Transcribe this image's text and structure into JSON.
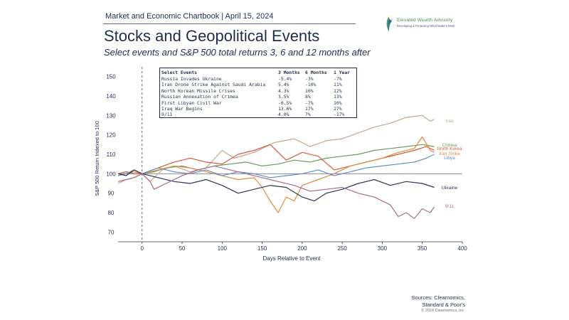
{
  "header": {
    "label": "Market and Economic Chartbook | April 15, 2024",
    "logo_name": "Elevated Wealth Advisory",
    "logo_tagline": "Developing & Protecting What Matters Most"
  },
  "title": "Stocks and Geopolitical Events",
  "subtitle": "Select events and S&P 500 total returns 3, 6 and 12 months after",
  "table": {
    "headers": [
      "Select Events",
      "3 Months",
      "6 Months",
      "1 Year"
    ],
    "rows": [
      [
        "Russia Invades Ukraine",
        "-5.4%",
        "-3%",
        "-7%"
      ],
      [
        "Iran Drone Strike Against Saudi Arabia",
        "5.4%",
        "-10%",
        "11%"
      ],
      [
        "North Korean Missile Crises",
        "4.3%",
        "10%",
        "12%"
      ],
      [
        "Russian Annexation of Crimea",
        "3.5%",
        "8%",
        "13%"
      ],
      [
        "First Libyan Civil War",
        "-0.5%",
        "-7%",
        "10%"
      ],
      [
        "Iraq War Begins",
        "13.6%",
        "17%",
        "27%"
      ],
      [
        "9/11",
        "4.0%",
        "7%",
        "-17%"
      ]
    ]
  },
  "footer": {
    "sources_line1": "Sources: Clearnomics,",
    "sources_line2": "Standard & Poor's",
    "copyright": "© 2024 Clearnomics, Inc."
  },
  "chart_data": {
    "type": "line",
    "xlabel": "Days Relative to Event",
    "ylabel": "S&P 500 Return Indexed to 100",
    "xlim": [
      -30,
      400
    ],
    "ylim": [
      65,
      155
    ],
    "x_ticks": [
      0,
      50,
      100,
      150,
      200,
      250,
      300,
      350,
      400
    ],
    "y_ticks": [
      70,
      80,
      90,
      100,
      110,
      120,
      130,
      140,
      150
    ],
    "reference_line_y": 100,
    "event_line_x": 0,
    "grid": false,
    "series": [
      {
        "name": "Iraq",
        "color": "#c9a48a",
        "points": [
          [
            -30,
            95
          ],
          [
            -20,
            97
          ],
          [
            -10,
            98
          ],
          [
            0,
            100
          ],
          [
            10,
            96
          ],
          [
            25,
            102
          ],
          [
            40,
            104
          ],
          [
            60,
            101
          ],
          [
            80,
            103
          ],
          [
            100,
            112
          ],
          [
            115,
            108
          ],
          [
            140,
            111
          ],
          [
            165,
            116
          ],
          [
            190,
            118
          ],
          [
            210,
            114
          ],
          [
            230,
            117
          ],
          [
            250,
            118
          ],
          [
            270,
            121
          ],
          [
            290,
            124
          ],
          [
            310,
            126
          ],
          [
            330,
            129
          ],
          [
            350,
            130
          ],
          [
            360,
            127
          ],
          [
            365,
            128
          ]
        ]
      },
      {
        "name": "Crimea",
        "color": "#6a9a5a",
        "points": [
          [
            -30,
            100
          ],
          [
            -20,
            101
          ],
          [
            -10,
            100
          ],
          [
            0,
            100
          ],
          [
            15,
            101
          ],
          [
            30,
            103
          ],
          [
            50,
            104
          ],
          [
            70,
            102
          ],
          [
            90,
            104
          ],
          [
            110,
            105
          ],
          [
            130,
            106
          ],
          [
            150,
            104
          ],
          [
            170,
            105
          ],
          [
            190,
            107
          ],
          [
            210,
            106
          ],
          [
            230,
            108
          ],
          [
            250,
            109
          ],
          [
            270,
            110
          ],
          [
            290,
            112
          ],
          [
            310,
            113
          ],
          [
            330,
            114
          ],
          [
            350,
            115
          ],
          [
            365,
            114
          ]
        ]
      },
      {
        "name": "North Korea",
        "color": "#d45a3a",
        "points": [
          [
            -30,
            100
          ],
          [
            -20,
            101
          ],
          [
            -10,
            100
          ],
          [
            0,
            100
          ],
          [
            20,
            103
          ],
          [
            40,
            106
          ],
          [
            60,
            108
          ],
          [
            80,
            106
          ],
          [
            100,
            105
          ],
          [
            120,
            110
          ],
          [
            140,
            112
          ],
          [
            160,
            115
          ],
          [
            180,
            107
          ],
          [
            200,
            111
          ],
          [
            220,
            109
          ],
          [
            240,
            102
          ],
          [
            260,
            104
          ],
          [
            280,
            106
          ],
          [
            300,
            108
          ],
          [
            320,
            110
          ],
          [
            340,
            112
          ],
          [
            355,
            114
          ],
          [
            365,
            112
          ]
        ]
      },
      {
        "name": "Iran Strike",
        "color": "#e08a3a",
        "points": [
          [
            -30,
            99
          ],
          [
            -20,
            100
          ],
          [
            -10,
            101
          ],
          [
            0,
            100
          ],
          [
            20,
            102
          ],
          [
            40,
            104
          ],
          [
            60,
            103
          ],
          [
            80,
            101
          ],
          [
            100,
            99
          ],
          [
            120,
            97
          ],
          [
            140,
            98
          ],
          [
            150,
            93
          ],
          [
            160,
            86
          ],
          [
            170,
            80
          ],
          [
            180,
            88
          ],
          [
            190,
            86
          ],
          [
            200,
            94
          ],
          [
            220,
            97
          ],
          [
            240,
            100
          ],
          [
            260,
            104
          ],
          [
            280,
            106
          ],
          [
            300,
            108
          ],
          [
            320,
            111
          ],
          [
            340,
            113
          ],
          [
            350,
            119
          ],
          [
            360,
            112
          ],
          [
            365,
            111
          ]
        ]
      },
      {
        "name": "Libya",
        "color": "#5b8fc9",
        "points": [
          [
            -30,
            99
          ],
          [
            -20,
            100
          ],
          [
            -10,
            102
          ],
          [
            0,
            100
          ],
          [
            20,
            103
          ],
          [
            40,
            101
          ],
          [
            60,
            100
          ],
          [
            80,
            102
          ],
          [
            100,
            99
          ],
          [
            120,
            101
          ],
          [
            140,
            100
          ],
          [
            160,
            98
          ],
          [
            180,
            99
          ],
          [
            200,
            100
          ],
          [
            220,
            102
          ],
          [
            240,
            99
          ],
          [
            260,
            101
          ],
          [
            280,
            103
          ],
          [
            300,
            104
          ],
          [
            320,
            105
          ],
          [
            340,
            106
          ],
          [
            355,
            108
          ],
          [
            365,
            110
          ]
        ]
      },
      {
        "name": "Ukraine",
        "color": "#2a3550",
        "points": [
          [
            -30,
            100
          ],
          [
            -20,
            99
          ],
          [
            -10,
            102
          ],
          [
            0,
            100
          ],
          [
            20,
            98
          ],
          [
            40,
            96
          ],
          [
            60,
            95
          ],
          [
            80,
            97
          ],
          [
            100,
            94
          ],
          [
            120,
            90
          ],
          [
            140,
            92
          ],
          [
            160,
            94
          ],
          [
            180,
            93
          ],
          [
            200,
            88
          ],
          [
            215,
            86
          ],
          [
            230,
            90
          ],
          [
            250,
            92
          ],
          [
            270,
            95
          ],
          [
            290,
            97
          ],
          [
            310,
            94
          ],
          [
            330,
            96
          ],
          [
            350,
            95
          ],
          [
            365,
            93
          ]
        ]
      },
      {
        "name": "9/11",
        "color": "#a86b8c",
        "points": [
          [
            -30,
            96
          ],
          [
            -20,
            97
          ],
          [
            -10,
            98
          ],
          [
            0,
            100
          ],
          [
            10,
            96
          ],
          [
            15,
            92
          ],
          [
            30,
            95
          ],
          [
            50,
            99
          ],
          [
            70,
            102
          ],
          [
            90,
            104
          ],
          [
            110,
            102
          ],
          [
            130,
            100
          ],
          [
            150,
            98
          ],
          [
            170,
            96
          ],
          [
            190,
            94
          ],
          [
            210,
            91
          ],
          [
            230,
            92
          ],
          [
            250,
            93
          ],
          [
            270,
            90
          ],
          [
            290,
            88
          ],
          [
            310,
            84
          ],
          [
            320,
            78
          ],
          [
            330,
            80
          ],
          [
            340,
            77
          ],
          [
            350,
            82
          ],
          [
            360,
            80
          ],
          [
            365,
            83
          ]
        ]
      }
    ],
    "end_labels": [
      {
        "name": "Iraq",
        "y": 128
      },
      {
        "name": "Crimea",
        "y": 114
      },
      {
        "name": "North Korea",
        "y": 112
      },
      {
        "name": "Iran Strike",
        "y": 110
      },
      {
        "name": "Libya",
        "y": 108
      },
      {
        "name": "Ukraine",
        "y": 93
      },
      {
        "name": "9/11",
        "y": 83
      }
    ]
  }
}
